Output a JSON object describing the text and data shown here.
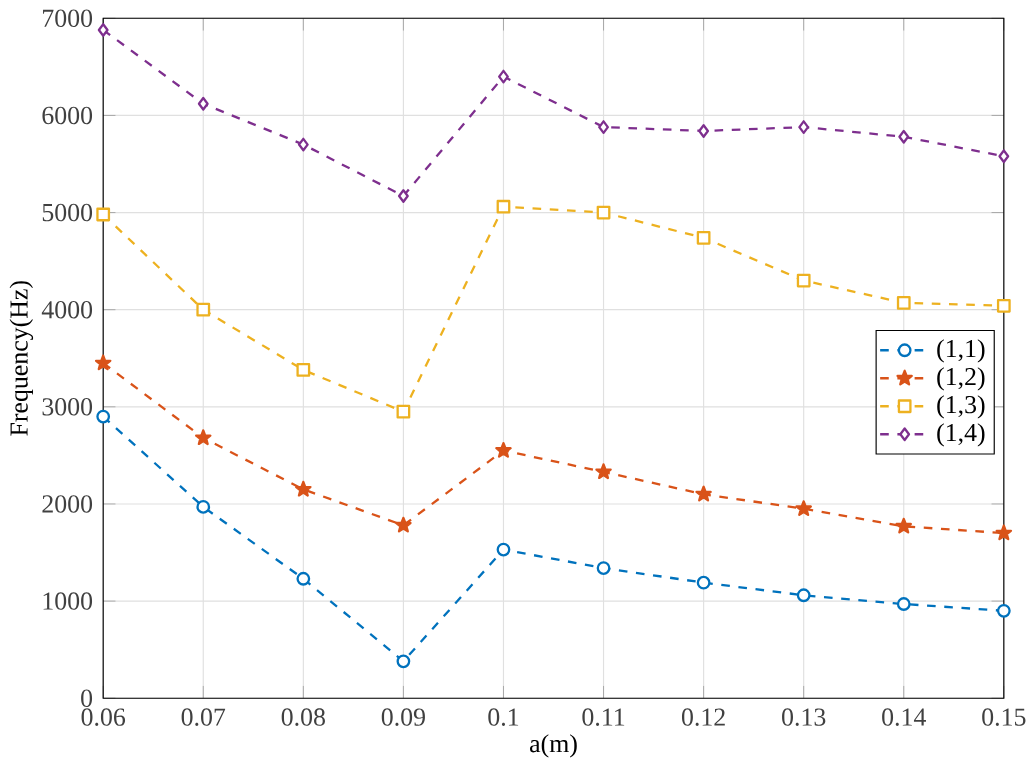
{
  "chart_data": {
    "type": "line",
    "xlabel": "a(m)",
    "ylabel": "Frequency(Hz)",
    "x": [
      0.06,
      0.07,
      0.08,
      0.09,
      0.1,
      0.11,
      0.12,
      0.13,
      0.14,
      0.15
    ],
    "xlim": [
      0.06,
      0.15
    ],
    "xticks": [
      0.06,
      0.07,
      0.08,
      0.09,
      0.1,
      0.11,
      0.12,
      0.13,
      0.14,
      0.15
    ],
    "ylim": [
      0,
      7000
    ],
    "yticks": [
      0,
      1000,
      2000,
      3000,
      4000,
      5000,
      6000,
      7000
    ],
    "grid": true,
    "legend": "right",
    "line_style": "dashed",
    "series": [
      {
        "name": "(1,1)",
        "color": "#0072bd",
        "marker": "circle",
        "values": [
          2900,
          1970,
          1230,
          380,
          1530,
          1340,
          1190,
          1060,
          970,
          900
        ]
      },
      {
        "name": "(1,2)",
        "color": "#d95319",
        "marker": "star",
        "values": [
          3450,
          2680,
          2150,
          1780,
          2550,
          2330,
          2100,
          1950,
          1770,
          1700
        ]
      },
      {
        "name": "(1,3)",
        "color": "#edb120",
        "marker": "square",
        "values": [
          4980,
          4000,
          3380,
          2950,
          5060,
          5000,
          4740,
          4300,
          4070,
          4040
        ]
      },
      {
        "name": "(1,4)",
        "color": "#7e2f8e",
        "marker": "diamond",
        "values": [
          6880,
          6120,
          5700,
          5170,
          6400,
          5880,
          5840,
          5880,
          5780,
          5580
        ]
      }
    ]
  }
}
